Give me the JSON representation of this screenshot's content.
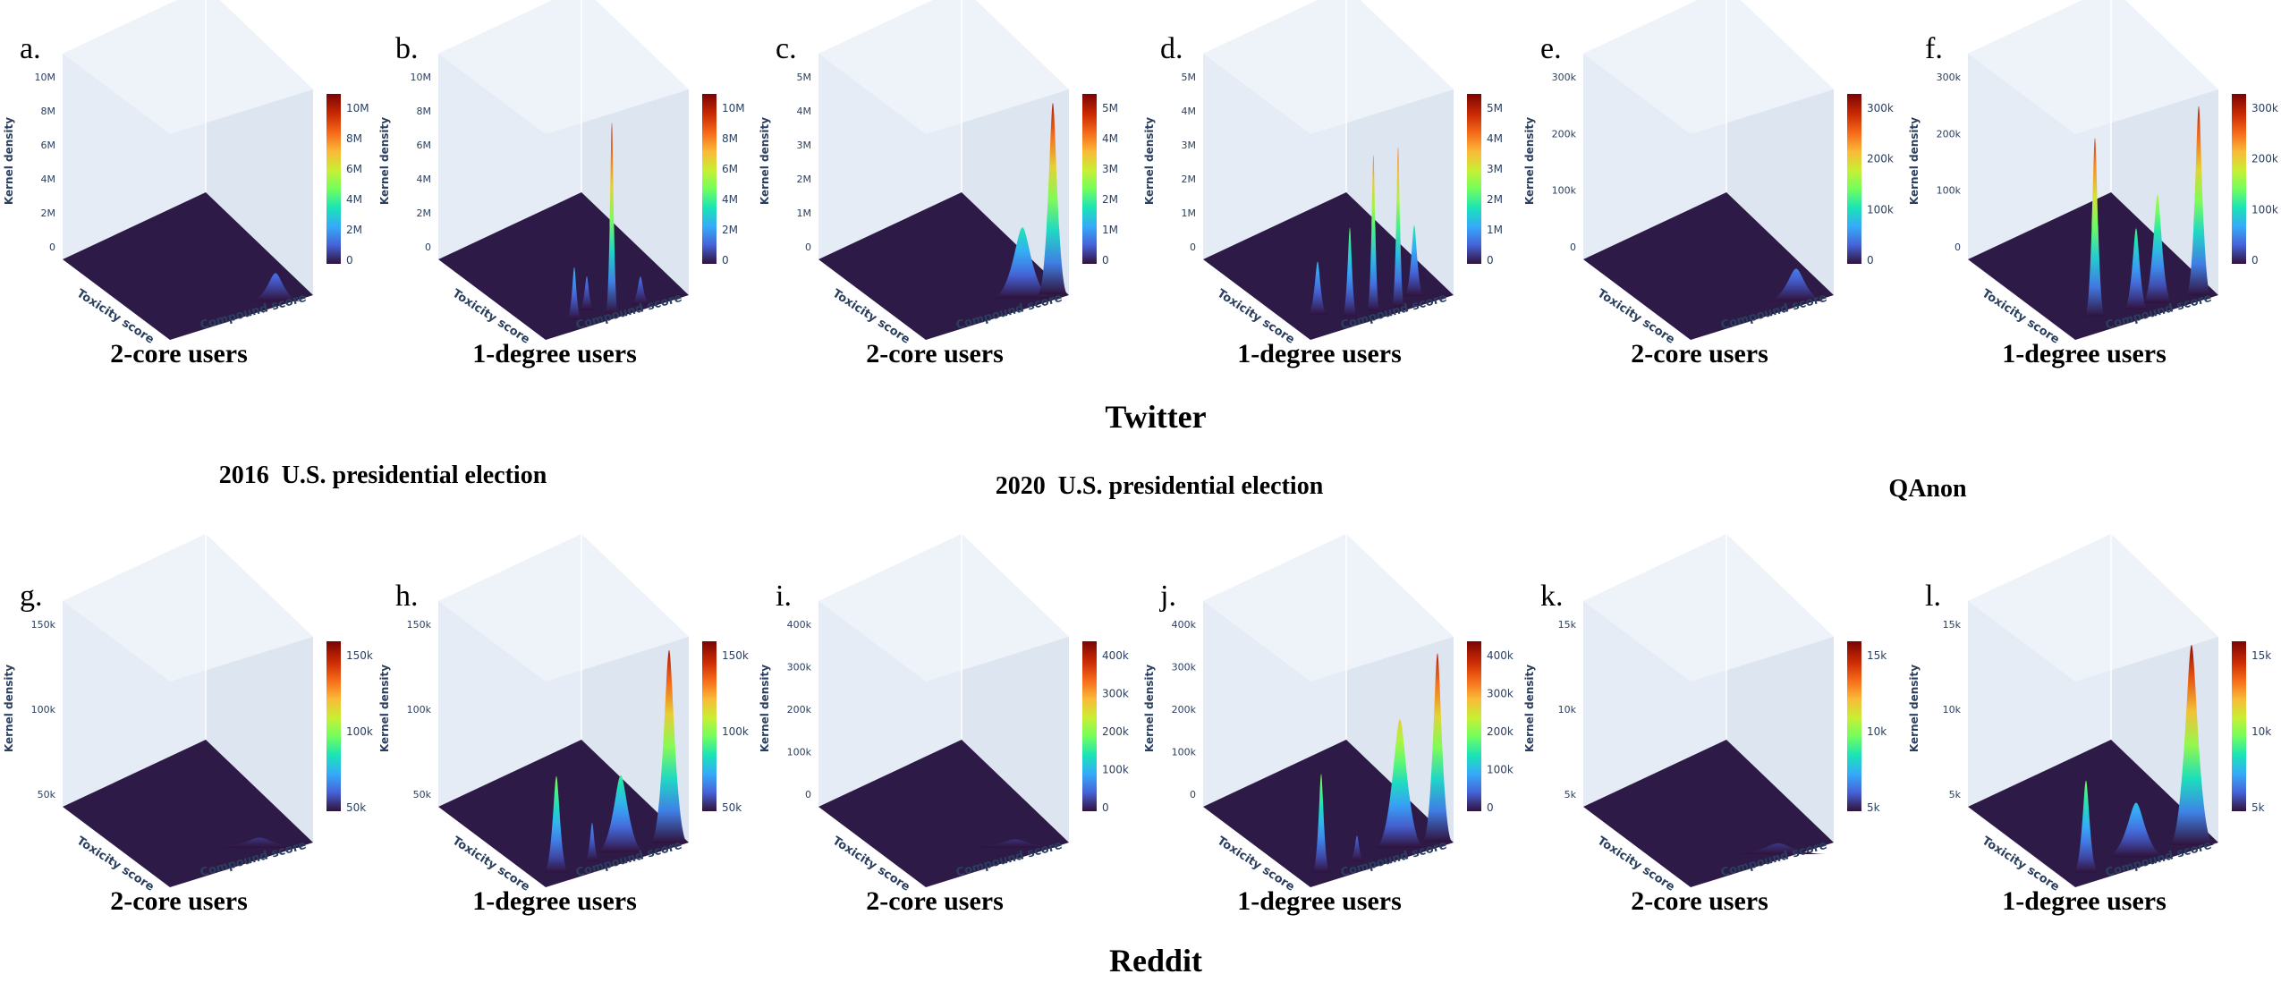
{
  "figure": {
    "row_top_label": "Twitter",
    "row_bottom_label": "Reddit",
    "groups": [
      "2016  U.S. presidential election",
      "2020  U.S. presidential election",
      "QAnon"
    ]
  },
  "colors": {
    "plot_bg": "#e5ecf6",
    "floor": "#2e1a47",
    "axis_text": "#2a3f5f",
    "colorscale": [
      "#30123b",
      "#4662d7",
      "#36aaf9",
      "#1ae4b6",
      "#72fe5e",
      "#c8ef34",
      "#faba39",
      "#f66b19",
      "#ca2a04",
      "#7a0403"
    ]
  },
  "chart_data": [
    {
      "id": "a",
      "type": "surface3d",
      "label": "a.",
      "title": "2-core users",
      "platform": "Twitter",
      "topic": "2016 U.S. presidential election",
      "zlabel": "Kernel density",
      "xlabel": "Compound score",
      "ylabel": "Toxicity score",
      "zticks": [
        "10M",
        "8M",
        "6M",
        "4M",
        "2M",
        "0"
      ],
      "cbar_ticks": [
        "10M",
        "8M",
        "6M",
        "4M",
        "2M",
        "0"
      ],
      "zmax": 11000000,
      "peaks": [
        {
          "compound": -0.55,
          "toxicity": 0.05,
          "height": 1500000,
          "width": 0.22
        }
      ]
    },
    {
      "id": "b",
      "type": "surface3d",
      "label": "b.",
      "title": "1-degree users",
      "platform": "Twitter",
      "topic": "2016 U.S. presidential election",
      "zlabel": "Kernel density",
      "xlabel": "Compound score",
      "ylabel": "Toxicity score",
      "zticks": [
        "10M",
        "8M",
        "6M",
        "4M",
        "2M",
        "0"
      ],
      "cbar_ticks": [
        "10M",
        "8M",
        "6M",
        "4M",
        "2M",
        "0"
      ],
      "zmax": 11000000,
      "peaks": [
        {
          "compound": 0.0,
          "toxicity": 0.05,
          "height": 10200000,
          "width": 0.05
        },
        {
          "compound": 0.45,
          "toxicity": 0.1,
          "height": 2800000,
          "width": 0.06
        },
        {
          "compound": 0.2,
          "toxicity": 0.15,
          "height": 1800000,
          "width": 0.06
        },
        {
          "compound": -0.4,
          "toxicity": 0.05,
          "height": 1500000,
          "width": 0.08
        }
      ]
    },
    {
      "id": "c",
      "type": "surface3d",
      "label": "c.",
      "title": "2-core users",
      "platform": "Twitter",
      "topic": "2020 U.S. presidential election",
      "zlabel": "Kernel density",
      "xlabel": "Compound score",
      "ylabel": "Toxicity score",
      "zticks": [
        "5M",
        "4M",
        "3M",
        "2M",
        "1M",
        "0"
      ],
      "cbar_ticks": [
        "5M",
        "4M",
        "3M",
        "2M",
        "1M",
        "0"
      ],
      "zmax": 5800000,
      "peaks": [
        {
          "compound": -0.85,
          "toxicity": 0.05,
          "height": 5400000,
          "width": 0.12
        },
        {
          "compound": -0.5,
          "toxicity": 0.1,
          "height": 2000000,
          "width": 0.25
        }
      ]
    },
    {
      "id": "d",
      "type": "surface3d",
      "label": "d.",
      "title": "1-degree users",
      "platform": "Twitter",
      "topic": "2020 U.S. presidential election",
      "zlabel": "Kernel density",
      "xlabel": "Compound score",
      "ylabel": "Toxicity score",
      "zticks": [
        "5M",
        "4M",
        "3M",
        "2M",
        "1M",
        "0"
      ],
      "cbar_ticks": [
        "5M",
        "4M",
        "3M",
        "2M",
        "1M",
        "0"
      ],
      "zmax": 5800000,
      "peaks": [
        {
          "compound": -0.3,
          "toxicity": 0.05,
          "height": 4500000,
          "width": 0.05
        },
        {
          "compound": 0.0,
          "toxicity": 0.08,
          "height": 4400000,
          "width": 0.05
        },
        {
          "compound": 0.3,
          "toxicity": 0.1,
          "height": 2500000,
          "width": 0.06
        },
        {
          "compound": -0.6,
          "toxicity": 0.1,
          "height": 2000000,
          "width": 0.08
        },
        {
          "compound": 0.6,
          "toxicity": 0.2,
          "height": 1500000,
          "width": 0.08
        }
      ]
    },
    {
      "id": "e",
      "type": "surface3d",
      "label": "e.",
      "title": "2-core users",
      "platform": "Twitter",
      "topic": "QAnon",
      "zlabel": "Kernel density",
      "xlabel": "Compound score",
      "ylabel": "Toxicity score",
      "zticks": [
        "300k",
        "200k",
        "100k",
        "0"
      ],
      "cbar_ticks": [
        "300k",
        "200k",
        "100k",
        "0"
      ],
      "zmax": 380000,
      "peaks": [
        {
          "compound": -0.55,
          "toxicity": 0.05,
          "height": 60000,
          "width": 0.25
        }
      ]
    },
    {
      "id": "f",
      "type": "surface3d",
      "label": "f.",
      "title": "1-degree users",
      "platform": "Twitter",
      "topic": "QAnon",
      "zlabel": "Kernel density",
      "xlabel": "Compound score",
      "ylabel": "Toxicity score",
      "zticks": [
        "300k",
        "200k",
        "100k",
        "0"
      ],
      "cbar_ticks": [
        "300k",
        "200k",
        "100k",
        "0"
      ],
      "zmax": 380000,
      "peaks": [
        {
          "compound": 0.5,
          "toxicity": 0.15,
          "height": 330000,
          "width": 0.08
        },
        {
          "compound": -0.8,
          "toxicity": 0.05,
          "height": 350000,
          "width": 0.1
        },
        {
          "compound": -0.3,
          "toxicity": 0.1,
          "height": 200000,
          "width": 0.12
        },
        {
          "compound": 0.0,
          "toxicity": 0.1,
          "height": 150000,
          "width": 0.1
        }
      ]
    },
    {
      "id": "g",
      "type": "surface3d",
      "label": "g.",
      "title": "2-core users",
      "platform": "Reddit",
      "topic": "2016 U.S. presidential election",
      "zlabel": "Kernel density",
      "xlabel": "Compound score",
      "ylabel": "Toxicity score",
      "zticks": [
        "150k",
        "100k",
        "50k"
      ],
      "cbar_ticks": [
        "150k",
        "100k",
        "50k"
      ],
      "zmax": 160000,
      "peaks": [
        {
          "compound": -0.4,
          "toxicity": 0.1,
          "height": 8000,
          "width": 0.4
        }
      ]
    },
    {
      "id": "h",
      "type": "surface3d",
      "label": "h.",
      "title": "1-degree users",
      "platform": "Reddit",
      "topic": "2016 U.S. presidential election",
      "zlabel": "Kernel density",
      "xlabel": "Compound score",
      "ylabel": "Toxicity score",
      "zticks": [
        "150k",
        "100k",
        "50k"
      ],
      "cbar_ticks": [
        "150k",
        "100k",
        "50k"
      ],
      "zmax": 160000,
      "peaks": [
        {
          "compound": -0.8,
          "toxicity": 0.05,
          "height": 150000,
          "width": 0.15
        },
        {
          "compound": 0.7,
          "toxicity": 0.1,
          "height": 75000,
          "width": 0.1
        },
        {
          "compound": -0.2,
          "toxicity": 0.1,
          "height": 60000,
          "width": 0.2
        },
        {
          "compound": 0.2,
          "toxicity": 0.1,
          "height": 30000,
          "width": 0.06
        }
      ]
    },
    {
      "id": "i",
      "type": "surface3d",
      "label": "i.",
      "title": "2-core users",
      "platform": "Reddit",
      "topic": "2020 U.S. presidential election",
      "zlabel": "Kernel density",
      "xlabel": "Compound score",
      "ylabel": "Toxicity score",
      "zticks": [
        "400k",
        "300k",
        "200k",
        "100k",
        "0"
      ],
      "cbar_ticks": [
        "400k",
        "300k",
        "200k",
        "100k",
        "0"
      ],
      "zmax": 480000,
      "peaks": [
        {
          "compound": -0.4,
          "toxicity": 0.1,
          "height": 20000,
          "width": 0.4
        }
      ]
    },
    {
      "id": "j",
      "type": "surface3d",
      "label": "j.",
      "title": "1-degree users",
      "platform": "Reddit",
      "topic": "2020 U.S. presidential election",
      "zlabel": "Kernel density",
      "xlabel": "Compound score",
      "ylabel": "Toxicity score",
      "zticks": [
        "400k",
        "300k",
        "200k",
        "100k",
        "0"
      ],
      "cbar_ticks": [
        "400k",
        "300k",
        "200k",
        "100k",
        "0"
      ],
      "zmax": 480000,
      "peaks": [
        {
          "compound": -0.85,
          "toxicity": 0.05,
          "height": 440000,
          "width": 0.12
        },
        {
          "compound": -0.4,
          "toxicity": 0.1,
          "height": 300000,
          "width": 0.2
        },
        {
          "compound": 0.7,
          "toxicity": 0.1,
          "height": 230000,
          "width": 0.07
        },
        {
          "compound": 0.2,
          "toxicity": 0.1,
          "height": 60000,
          "width": 0.06
        }
      ]
    },
    {
      "id": "k",
      "type": "surface3d",
      "label": "k.",
      "title": "2-core users",
      "platform": "Reddit",
      "topic": "QAnon",
      "zlabel": "Kernel density",
      "xlabel": "Compound score",
      "ylabel": "Toxicity score",
      "zticks": [
        "15k",
        "10k",
        "5k"
      ],
      "cbar_ticks": [
        "15k",
        "10k",
        "5k"
      ],
      "zmax": 19000,
      "peaks": [
        {
          "compound": -0.3,
          "toxicity": 0.05,
          "height": 1000,
          "width": 0.4
        }
      ]
    },
    {
      "id": "l",
      "type": "surface3d",
      "label": "l.",
      "title": "1-degree users",
      "platform": "Reddit",
      "topic": "QAnon",
      "zlabel": "Kernel density",
      "xlabel": "Compound score",
      "ylabel": "Toxicity score",
      "zticks": [
        "15k",
        "10k",
        "5k"
      ],
      "cbar_ticks": [
        "15k",
        "10k",
        "5k"
      ],
      "zmax": 19000,
      "peaks": [
        {
          "compound": -0.7,
          "toxicity": 0.05,
          "height": 18500,
          "width": 0.18
        },
        {
          "compound": 0.7,
          "toxicity": 0.1,
          "height": 8500,
          "width": 0.1
        },
        {
          "compound": 0.0,
          "toxicity": 0.1,
          "height": 5000,
          "width": 0.25
        }
      ]
    }
  ]
}
